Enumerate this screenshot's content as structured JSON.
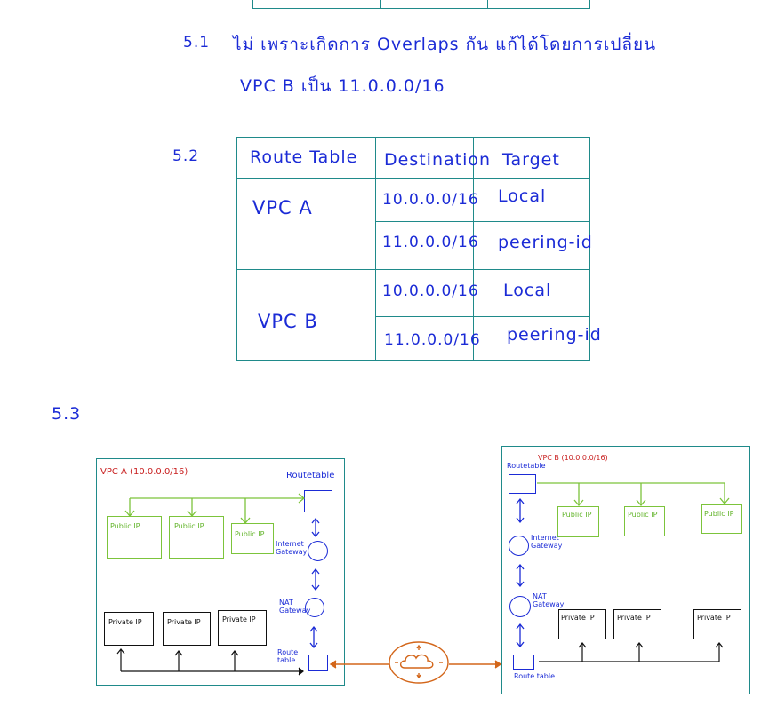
{
  "sec51": {
    "number": "5.1",
    "line1": "ไม่ เพราะเกิดการ Overlaps กัน แก้ได้โดยการเปลี่ยน",
    "line2": "VPC B เป็น 11.0.0.0/16"
  },
  "sec52": {
    "number": "5.2",
    "headers": [
      "Route Table",
      "Destination",
      "Target"
    ],
    "rows": [
      {
        "table": "VPC A",
        "destination": "10.0.0.0/16",
        "target": "Local"
      },
      {
        "table": "",
        "destination": "11.0.0.0/16",
        "target": "peering-id"
      },
      {
        "table": "VPC B",
        "destination": "10.0.0.0/16",
        "target": "Local"
      },
      {
        "table": "",
        "destination": "11.0.0.0/16",
        "target": "peering-id"
      }
    ]
  },
  "sec53": {
    "number": "5.3",
    "vpc_a": {
      "title": "VPC A (10.0.0.0/16)",
      "route_table_top": "Routetable",
      "public_ips": [
        "Public IP",
        "Public IP",
        "Public IP"
      ],
      "private_ips": [
        "Private IP",
        "Private IP",
        "Private IP"
      ],
      "igw_label": "Internet Gateway",
      "nat_label": "NAT Gateway",
      "route_table_bottom": "Route table"
    },
    "vpc_b": {
      "title": "VPC B (10.0.0.0/16)",
      "route_table_top": "Routetable",
      "public_ips": [
        "Public IP",
        "Public IP",
        "Public IP"
      ],
      "private_ips": [
        "Private IP",
        "Private IP",
        "Private IP"
      ],
      "igw_label": "Internet Gateway",
      "nat_label": "NAT Gateway",
      "route_table_bottom": "Route table"
    }
  },
  "colors": {
    "ink": "#1b2bd6",
    "teal": "#1f8a8a",
    "green": "#7cc43b",
    "red": "#c81e1e",
    "orange": "#d3661a",
    "black": "#111111"
  }
}
